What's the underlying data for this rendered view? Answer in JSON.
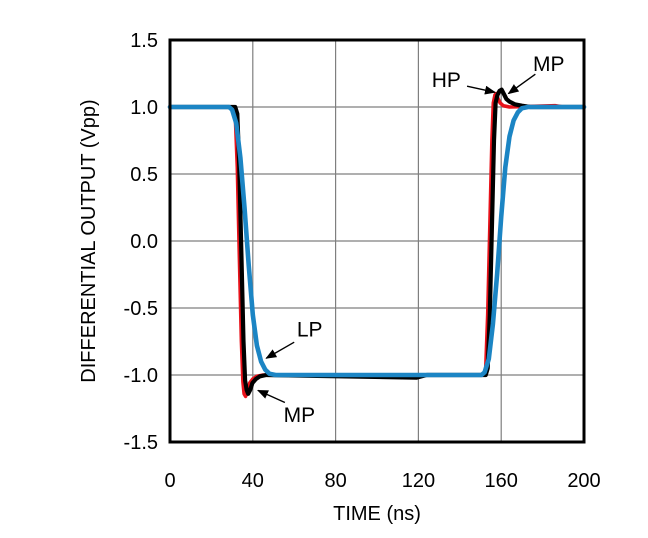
{
  "chart_data": {
    "type": "line",
    "title": "",
    "xlabel": "TIME (ns)",
    "ylabel": "DIFFERENTIAL OUTPUT (Vpp)",
    "xlim": [
      0,
      200
    ],
    "ylim": [
      -1.5,
      1.5
    ],
    "xticks": [
      0,
      40,
      80,
      120,
      160,
      200
    ],
    "yticks": [
      1.5,
      1.0,
      0.5,
      0.0,
      -0.5,
      -1.0,
      -1.5
    ],
    "grid": true,
    "grid_color": "#7f7f7f",
    "border_color": "#000000",
    "legend_position": "none",
    "series": [
      {
        "name": "HP",
        "color": "#e8121a",
        "width": 3.6,
        "points": [
          [
            0,
            1
          ],
          [
            30.5,
            1
          ],
          [
            31.5,
            0.95
          ],
          [
            32.5,
            0.55
          ],
          [
            33.5,
            -0.1
          ],
          [
            34.5,
            -0.75
          ],
          [
            35.2,
            -1.05
          ],
          [
            35.8,
            -1.14
          ],
          [
            36.5,
            -1.16
          ],
          [
            37.5,
            -1.12
          ],
          [
            38.5,
            -1.06
          ],
          [
            40,
            -1.03
          ],
          [
            42,
            -1.01
          ],
          [
            45,
            -1
          ],
          [
            95,
            -1.01
          ],
          [
            100,
            -1
          ],
          [
            118,
            -1.02
          ],
          [
            123,
            -1
          ],
          [
            151.5,
            -1
          ],
          [
            152.5,
            -0.95
          ],
          [
            153.5,
            -0.55
          ],
          [
            154.5,
            0.1
          ],
          [
            155.5,
            0.75
          ],
          [
            156.2,
            1.03
          ],
          [
            157,
            1.09
          ],
          [
            157.6,
            1.1
          ],
          [
            158.5,
            1.06
          ],
          [
            159.5,
            1.03
          ],
          [
            161,
            1.01
          ],
          [
            164,
            1
          ],
          [
            186,
            1.01
          ],
          [
            190,
            1
          ],
          [
            200,
            1
          ]
        ]
      },
      {
        "name": "MP",
        "color": "#000000",
        "width": 4.2,
        "points": [
          [
            0,
            1
          ],
          [
            31.5,
            1
          ],
          [
            32.5,
            0.95
          ],
          [
            33.5,
            0.55
          ],
          [
            34.5,
            -0.1
          ],
          [
            35.5,
            -0.75
          ],
          [
            36.3,
            -1.04
          ],
          [
            37,
            -1.11
          ],
          [
            37.8,
            -1.14
          ],
          [
            38.8,
            -1.11
          ],
          [
            39.8,
            -1.06
          ],
          [
            41.5,
            -1.03
          ],
          [
            43.5,
            -1.01
          ],
          [
            46.5,
            -1
          ],
          [
            119,
            -1.02
          ],
          [
            124,
            -1
          ],
          [
            152.5,
            -1
          ],
          [
            153.5,
            -0.95
          ],
          [
            154.5,
            -0.55
          ],
          [
            155.5,
            0.1
          ],
          [
            156.5,
            0.75
          ],
          [
            157.3,
            1.03
          ],
          [
            158.2,
            1.09
          ],
          [
            159.2,
            1.12
          ],
          [
            160.2,
            1.13
          ],
          [
            161.2,
            1.1
          ],
          [
            162.5,
            1.06
          ],
          [
            164,
            1.04
          ],
          [
            166.5,
            1.02
          ],
          [
            170,
            1.01
          ],
          [
            174,
            1
          ],
          [
            200,
            1
          ]
        ]
      },
      {
        "name": "LP",
        "color": "#1c85c4",
        "width": 4.6,
        "points": [
          [
            0,
            1
          ],
          [
            28.5,
            1
          ],
          [
            30,
            0.98
          ],
          [
            32,
            0.88
          ],
          [
            34,
            0.62
          ],
          [
            36,
            0.25
          ],
          [
            38,
            -0.18
          ],
          [
            40,
            -0.55
          ],
          [
            42,
            -0.78
          ],
          [
            44,
            -0.9
          ],
          [
            46,
            -0.96
          ],
          [
            48,
            -0.99
          ],
          [
            51,
            -1
          ],
          [
            150.5,
            -1
          ],
          [
            152,
            -0.98
          ],
          [
            154,
            -0.88
          ],
          [
            156,
            -0.62
          ],
          [
            158,
            -0.25
          ],
          [
            160,
            0.18
          ],
          [
            162,
            0.55
          ],
          [
            164,
            0.78
          ],
          [
            166,
            0.9
          ],
          [
            168,
            0.96
          ],
          [
            170,
            0.99
          ],
          [
            173,
            1
          ],
          [
            200,
            1
          ]
        ]
      }
    ],
    "annotations": [
      {
        "label": "HP",
        "label_x": 133.5,
        "label_y": 1.2,
        "arrow_from_x": 143.5,
        "arrow_from_y": 1.155,
        "arrow_to_x": 157.0,
        "arrow_to_y": 1.11
      },
      {
        "label": "MP",
        "label_x": 183.0,
        "label_y": 1.32,
        "arrow_from_x": 176.5,
        "arrow_from_y": 1.245,
        "arrow_to_x": 163.5,
        "arrow_to_y": 1.1
      },
      {
        "label": "LP",
        "label_x": 67.5,
        "label_y": -0.66,
        "arrow_from_x": 60.0,
        "arrow_from_y": -0.755,
        "arrow_to_x": 46.5,
        "arrow_to_y": -0.875
      },
      {
        "label": "MP",
        "label_x": 62.5,
        "label_y": -1.3,
        "arrow_from_x": 55.5,
        "arrow_from_y": -1.205,
        "arrow_to_x": 42.5,
        "arrow_to_y": -1.115
      }
    ]
  }
}
